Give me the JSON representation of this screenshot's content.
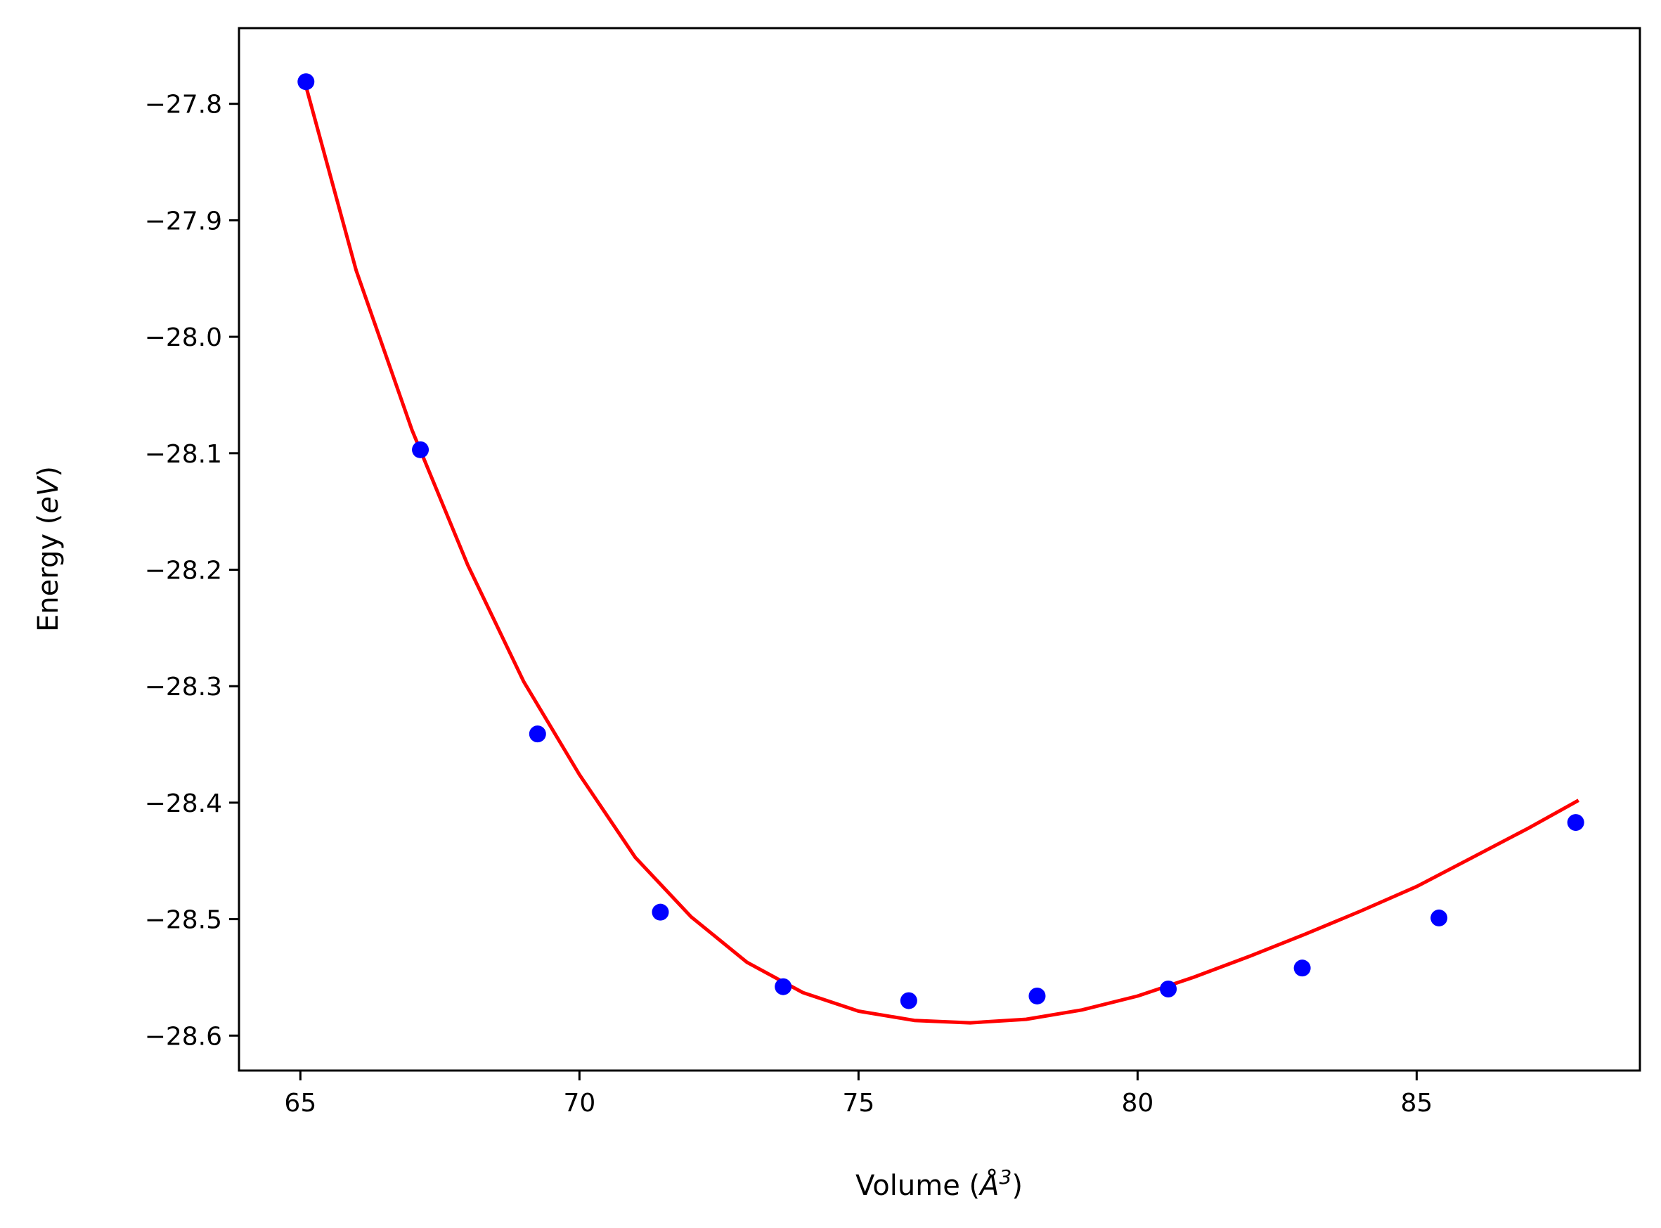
{
  "chart_data": {
    "type": "scatter",
    "xlabel": "Volume (Å³)",
    "xlabel_parts": {
      "pre": "Volume (",
      "sym": "Å",
      "sup": "3",
      "post": ")"
    },
    "ylabel": "Energy (eV)",
    "ylabel_parts": {
      "pre": "Energy (",
      "sym": "eV",
      "post": ")"
    },
    "xlim": [
      63.9,
      89.0
    ],
    "ylim": [
      -28.63,
      -27.735
    ],
    "xticks": [
      65,
      70,
      75,
      80,
      85
    ],
    "yticks": [
      -27.8,
      -27.9,
      -28.0,
      -28.1,
      -28.2,
      -28.3,
      -28.4,
      -28.5,
      -28.6
    ],
    "ytick_labels": [
      "−27.8",
      "−27.9",
      "−28.0",
      "−28.1",
      "−28.2",
      "−28.3",
      "−28.4",
      "−28.5",
      "−28.6"
    ],
    "grid": false,
    "series": [
      {
        "kind": "points",
        "color": "#0000ff",
        "x": [
          65.1,
          67.15,
          69.25,
          71.45,
          73.65,
          75.9,
          78.2,
          80.55,
          82.95,
          85.4,
          87.85
        ],
        "y": [
          -27.781,
          -28.097,
          -28.341,
          -28.494,
          -28.558,
          -28.57,
          -28.566,
          -28.56,
          -28.542,
          -28.499,
          -28.417
        ]
      },
      {
        "kind": "fit-curve",
        "color": "#ff0000",
        "x": [
          65.1,
          66.0,
          67.0,
          68.0,
          69.0,
          70.0,
          71.0,
          72.0,
          73.0,
          74.0,
          75.0,
          76.0,
          77.0,
          78.0,
          79.0,
          80.0,
          81.0,
          82.0,
          83.0,
          84.0,
          85.0,
          86.0,
          87.0,
          87.9
        ],
        "y": [
          -27.785,
          -27.943,
          -28.08,
          -28.196,
          -28.296,
          -28.376,
          -28.447,
          -28.498,
          -28.537,
          -28.563,
          -28.579,
          -28.587,
          -28.589,
          -28.586,
          -28.578,
          -28.566,
          -28.55,
          -28.532,
          -28.513,
          -28.493,
          -28.472,
          -28.447,
          -28.422,
          -28.398
        ]
      }
    ]
  }
}
